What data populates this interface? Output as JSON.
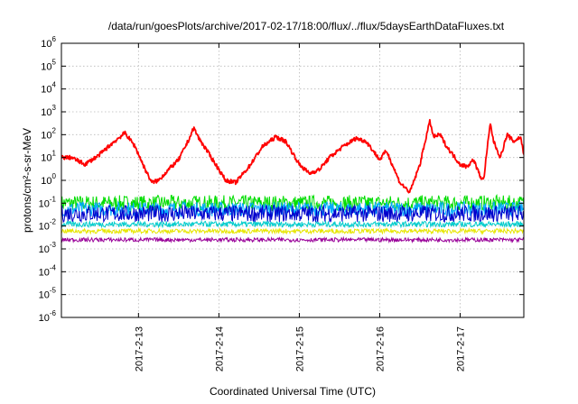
{
  "chart_data": {
    "type": "line",
    "title": "/data/run/goesPlots/archive/2017-02-17/18:00/flux/../flux/5daysEarthDataFluxes.txt",
    "xlabel": "Coordinated Universal Time (UTC)",
    "ylabel": "protons/cm²-s-sr-MeV",
    "y_scale": "log",
    "ylim": [
      1e-06,
      1000000.0
    ],
    "xlim": [
      "2017-02-12 01:00",
      "2017-02-17 19:00"
    ],
    "grid": true,
    "x_ticks": [
      "2017-2-13",
      "2017-2-14",
      "2017-2-15",
      "2017-2-16",
      "2017-2-17"
    ],
    "y_ticks": [
      {
        "base": "10",
        "exp": "6"
      },
      {
        "base": "10",
        "exp": "5"
      },
      {
        "base": "10",
        "exp": "4"
      },
      {
        "base": "10",
        "exp": "3"
      },
      {
        "base": "10",
        "exp": "2"
      },
      {
        "base": "10",
        "exp": "1"
      },
      {
        "base": "10",
        "exp": "0"
      },
      {
        "base": "10",
        "exp": "-1"
      },
      {
        "base": "10",
        "exp": "-2"
      },
      {
        "base": "10",
        "exp": "-3"
      },
      {
        "base": "10",
        "exp": "-4"
      },
      {
        "base": "10",
        "exp": "-5"
      },
      {
        "base": "10",
        "exp": "-6"
      }
    ],
    "series": [
      {
        "color": "#ff0000",
        "x": [
          "2017-02-12 01:00",
          "2017-02-12 04:00",
          "2017-02-12 08:00",
          "2017-02-12 12:00",
          "2017-02-12 16:00",
          "2017-02-12 18:00",
          "2017-02-12 20:00",
          "2017-02-12 23:00",
          "2017-02-13 02:00",
          "2017-02-13 04:00",
          "2017-02-13 06:00",
          "2017-02-13 09:00",
          "2017-02-13 12:00",
          "2017-02-13 15:00",
          "2017-02-13 16:30",
          "2017-02-13 18:00",
          "2017-02-13 20:00",
          "2017-02-14 00:00",
          "2017-02-14 02:00",
          "2017-02-14 05:00",
          "2017-02-14 09:00",
          "2017-02-14 13:00",
          "2017-02-14 17:00",
          "2017-02-14 20:00",
          "2017-02-15 00:00",
          "2017-02-15 03:00",
          "2017-02-15 06:00",
          "2017-02-15 09:00",
          "2017-02-15 13:00",
          "2017-02-15 17:00",
          "2017-02-15 20:00",
          "2017-02-16 00:00",
          "2017-02-16 02:00",
          "2017-02-16 04:00",
          "2017-02-16 06:00",
          "2017-02-16 09:00",
          "2017-02-16 12:00",
          "2017-02-16 14:00",
          "2017-02-16 15:00",
          "2017-02-16 16:00",
          "2017-02-16 18:00",
          "2017-02-16 20:00",
          "2017-02-17 00:00",
          "2017-02-17 02:00",
          "2017-02-17 04:00",
          "2017-02-17 06:00",
          "2017-02-17 07:00",
          "2017-02-17 08:00",
          "2017-02-17 09:00",
          "2017-02-17 10:00",
          "2017-02-17 12:00",
          "2017-02-17 14:00",
          "2017-02-17 16:00",
          "2017-02-17 18:00",
          "2017-02-17 19:00"
        ],
        "values": [
          10,
          10,
          5,
          12,
          40,
          70,
          120,
          30,
          3,
          0.8,
          1,
          3,
          8,
          60,
          200,
          70,
          25,
          3,
          1,
          0.8,
          4,
          30,
          80,
          50,
          5,
          2,
          3,
          10,
          30,
          70,
          50,
          8,
          20,
          4,
          0.8,
          0.3,
          5,
          100,
          400,
          80,
          100,
          30,
          5,
          4,
          8,
          1.5,
          1,
          20,
          300,
          50,
          10,
          100,
          50,
          80,
          15
        ]
      },
      {
        "color": "#00dd00",
        "level": 0.1,
        "spread": 0.7
      },
      {
        "color": "#00aaff",
        "level": 0.055,
        "spread": 0.65
      },
      {
        "color": "#0000cc",
        "level": 0.035,
        "spread": 0.75
      },
      {
        "color": "#00cccc",
        "level": 0.012,
        "spread": 0.25
      },
      {
        "color": "#e6e600",
        "level": 0.006,
        "spread": 0.2
      },
      {
        "color": "#990099",
        "level": 0.0025,
        "spread": 0.18
      }
    ]
  }
}
